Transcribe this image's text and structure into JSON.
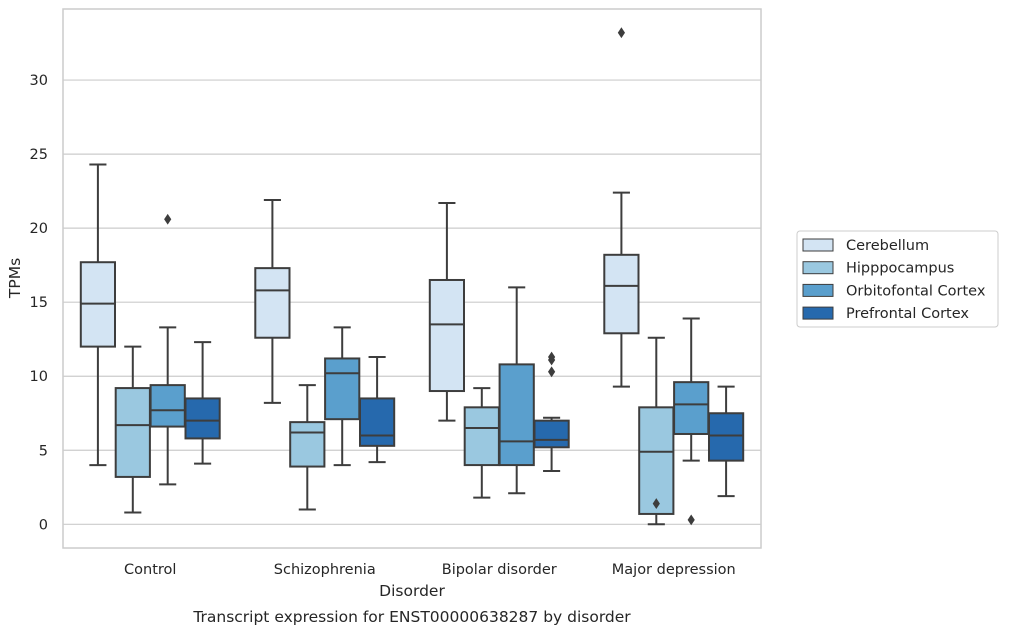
{
  "chart_data": {
    "type": "box",
    "xlabel": "Disorder",
    "ylabel": "TPMs",
    "caption": "Transcript expression for ENST00000638287 by disorder",
    "ylim": [
      -1.6,
      34.8
    ],
    "yticks": [
      0,
      5,
      10,
      15,
      20,
      25,
      30
    ],
    "grid": "horizontal",
    "legend_position": "right",
    "categories": [
      "Control",
      "Schizophrenia",
      "Bipolar disorder",
      "Major depression"
    ],
    "series": [
      {
        "name": "Cerebellum",
        "color": "#d3e4f3",
        "boxes": [
          {
            "min": 4.0,
            "q1": 12.0,
            "median": 14.9,
            "q3": 17.7,
            "max": 24.3,
            "outliers": []
          },
          {
            "min": 8.2,
            "q1": 12.6,
            "median": 15.8,
            "q3": 17.3,
            "max": 21.9,
            "outliers": []
          },
          {
            "min": 7.0,
            "q1": 9.0,
            "median": 13.5,
            "q3": 16.5,
            "max": 21.7,
            "outliers": []
          },
          {
            "min": 9.3,
            "q1": 12.9,
            "median": 16.1,
            "q3": 18.2,
            "max": 22.4,
            "outliers": [
              33.2
            ]
          }
        ]
      },
      {
        "name": "Hipppocampus",
        "color": "#9ac8e0",
        "boxes": [
          {
            "min": 0.8,
            "q1": 3.2,
            "median": 6.7,
            "q3": 9.2,
            "max": 12.0,
            "outliers": []
          },
          {
            "min": 1.0,
            "q1": 3.9,
            "median": 6.2,
            "q3": 6.9,
            "max": 9.4,
            "outliers": []
          },
          {
            "min": 1.8,
            "q1": 4.0,
            "median": 6.5,
            "q3": 7.9,
            "max": 9.2,
            "outliers": []
          },
          {
            "min": 0.0,
            "q1": 0.7,
            "median": 4.9,
            "q3": 7.9,
            "max": 12.6,
            "outliers": [
              1.4
            ]
          }
        ]
      },
      {
        "name": "Orbitofontal Cortex",
        "color": "#5a9fcd",
        "boxes": [
          {
            "min": 2.7,
            "q1": 6.6,
            "median": 7.7,
            "q3": 9.4,
            "max": 13.3,
            "outliers": [
              20.6
            ]
          },
          {
            "min": 4.0,
            "q1": 7.1,
            "median": 10.2,
            "q3": 11.2,
            "max": 13.3,
            "outliers": []
          },
          {
            "min": 2.1,
            "q1": 4.0,
            "median": 5.6,
            "q3": 10.8,
            "max": 16.0,
            "outliers": []
          },
          {
            "min": 4.3,
            "q1": 6.1,
            "median": 8.1,
            "q3": 9.6,
            "max": 13.9,
            "outliers": [
              0.3
            ]
          }
        ]
      },
      {
        "name": "Prefrontal Cortex",
        "color": "#2669ad",
        "boxes": [
          {
            "min": 4.1,
            "q1": 5.8,
            "median": 7.0,
            "q3": 8.5,
            "max": 12.3,
            "outliers": []
          },
          {
            "min": 4.2,
            "q1": 5.3,
            "median": 6.0,
            "q3": 8.5,
            "max": 11.3,
            "outliers": []
          },
          {
            "min": 3.6,
            "q1": 5.2,
            "median": 5.7,
            "q3": 7.0,
            "max": 7.2,
            "outliers": [
              10.3,
              11.1,
              11.3
            ]
          },
          {
            "min": 1.9,
            "q1": 4.3,
            "median": 6.0,
            "q3": 7.5,
            "max": 9.3,
            "outliers": []
          }
        ]
      }
    ]
  }
}
